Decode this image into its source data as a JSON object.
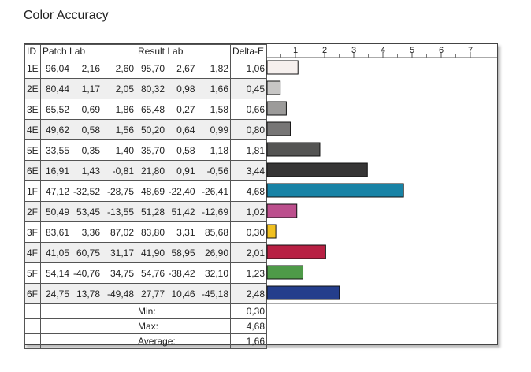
{
  "title": "Color Accuracy",
  "headers": {
    "id": "ID",
    "patch": "Patch Lab",
    "result": "Result Lab",
    "delta": "Delta-E"
  },
  "rows": [
    {
      "id": "1E",
      "patch": [
        "96,04",
        "2,16",
        "2,60"
      ],
      "result": [
        "95,70",
        "2,67",
        "1,82"
      ],
      "delta": "1,06",
      "color": "#f6f0ee"
    },
    {
      "id": "2E",
      "patch": [
        "80,44",
        "1,17",
        "2,05"
      ],
      "result": [
        "80,32",
        "0,98",
        "1,66"
      ],
      "delta": "0,45",
      "color": "#c7c6c5"
    },
    {
      "id": "3E",
      "patch": [
        "65,52",
        "0,69",
        "1,86"
      ],
      "result": [
        "65,48",
        "0,27",
        "1,58"
      ],
      "delta": "0,66",
      "color": "#9c9b9a"
    },
    {
      "id": "4E",
      "patch": [
        "49,62",
        "0,58",
        "1,56"
      ],
      "result": [
        "50,20",
        "0,64",
        "0,99"
      ],
      "delta": "0,80",
      "color": "#777676"
    },
    {
      "id": "5E",
      "patch": [
        "33,55",
        "0,35",
        "1,40"
      ],
      "result": [
        "35,70",
        "0,58",
        "1,18"
      ],
      "delta": "1,81",
      "color": "#545453"
    },
    {
      "id": "6E",
      "patch": [
        "16,91",
        "1,43",
        "-0,81"
      ],
      "result": [
        "21,80",
        "0,91",
        "-0,56"
      ],
      "delta": "3,44",
      "color": "#363535"
    },
    {
      "id": "1F",
      "patch": [
        "47,12",
        "-32,52",
        "-28,75"
      ],
      "result": [
        "48,69",
        "-22,40",
        "-26,41"
      ],
      "delta": "4,68",
      "color": "#1883a6"
    },
    {
      "id": "2F",
      "patch": [
        "50,49",
        "53,45",
        "-13,55"
      ],
      "result": [
        "51,28",
        "51,42",
        "-12,69"
      ],
      "delta": "1,02",
      "color": "#bc4f8d"
    },
    {
      "id": "3F",
      "patch": [
        "83,61",
        "3,36",
        "87,02"
      ],
      "result": [
        "83,80",
        "3,31",
        "85,68"
      ],
      "delta": "0,30",
      "color": "#f0c020"
    },
    {
      "id": "4F",
      "patch": [
        "41,05",
        "60,75",
        "31,17"
      ],
      "result": [
        "41,90",
        "58,95",
        "26,90"
      ],
      "delta": "2,01",
      "color": "#b82043"
    },
    {
      "id": "5F",
      "patch": [
        "54,14",
        "-40,76",
        "34,75"
      ],
      "result": [
        "54,76",
        "-38,42",
        "32,10"
      ],
      "delta": "1,23",
      "color": "#4e9a48"
    },
    {
      "id": "6F",
      "patch": [
        "24,75",
        "13,78",
        "-49,48"
      ],
      "result": [
        "27,77",
        "10,46",
        "-45,18"
      ],
      "delta": "2,48",
      "color": "#243e8c"
    }
  ],
  "summary": [
    {
      "label": "Min:",
      "value": "0,30"
    },
    {
      "label": "Max:",
      "value": "4,68"
    },
    {
      "label": "Average:",
      "value": "1,66"
    }
  ],
  "chart_data": {
    "type": "bar",
    "orientation": "horizontal",
    "categories": [
      "1E",
      "2E",
      "3E",
      "4E",
      "5E",
      "6E",
      "1F",
      "2F",
      "3F",
      "4F",
      "5F",
      "6F"
    ],
    "values": [
      1.06,
      0.45,
      0.66,
      0.8,
      1.81,
      3.44,
      4.68,
      1.02,
      0.3,
      2.01,
      1.23,
      2.48
    ],
    "x_ticks": [
      "1",
      "2",
      "3",
      "4",
      "5",
      "6",
      "7"
    ],
    "xlim": [
      0,
      7.8
    ],
    "title": "Color Accuracy",
    "xlabel": "",
    "ylabel": ""
  }
}
